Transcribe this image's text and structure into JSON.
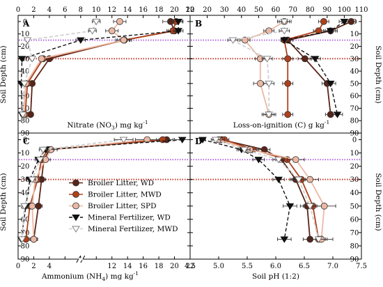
{
  "figure": {
    "title": ""
  },
  "legend": {
    "placement": "panel C, right",
    "entries": [
      {
        "key": "BL_WD",
        "label": "Broiler Litter, WD",
        "color": "#5a2418",
        "marker": "circle",
        "line": "solid"
      },
      {
        "key": "BL_MWD",
        "label": "Broiler Litter, MWD",
        "color": "#b0401a",
        "marker": "circle",
        "line": "solid"
      },
      {
        "key": "BL_SPD",
        "label": "Broiler Litter, SPD",
        "color": "#eab8a4",
        "marker": "circle",
        "line": "solid"
      },
      {
        "key": "MF_WD",
        "label": "Mineral Fertilizer, WD",
        "color": "#111111",
        "marker": "triangle-down",
        "line": "dashed"
      },
      {
        "key": "MF_MWD",
        "label": "Mineral Fertilizer, MWD",
        "color": "#d0d0d0",
        "marker": "triangle-down-open",
        "line": "dashed"
      }
    ]
  },
  "reference_lines": [
    {
      "depth": 15,
      "color": "#b06ae0",
      "style": "dotted"
    },
    {
      "depth": 30,
      "color": "#c0392b",
      "style": "dotted"
    }
  ],
  "y_axis": {
    "label": "Soil Depth (cm)",
    "range": [
      -5,
      90
    ],
    "inverted": true,
    "ticks": [
      "0",
      "10",
      "20",
      "30",
      "40",
      "50",
      "60",
      "70",
      "80",
      "90"
    ]
  },
  "chart_data": [
    {
      "type": "line",
      "panel": "A",
      "title": "",
      "xlabel": "Nitrate (NO3) mg kg-1",
      "xlabel_parts": {
        "main": "Nitrate (NO",
        "sub": "3",
        "close": ") mg kg",
        "sup": "-1"
      },
      "x_axis_position": "top",
      "xlim": [
        0,
        22
      ],
      "x_ticks": [
        "0",
        "2",
        "4",
        "6",
        "8",
        "10",
        "12",
        "14",
        "16",
        "18",
        "20",
        "22"
      ],
      "grid": false,
      "depths": [
        0,
        7.5,
        15,
        30,
        50,
        75
      ],
      "series": [
        {
          "name": "Broiler Litter, WD",
          "values": [
            19.5,
            20.0,
            13.5,
            4.0,
            1.8,
            1.6
          ],
          "error": [
            1.0,
            0.8,
            0.8,
            0.4,
            0.3,
            0.3
          ]
        },
        {
          "name": "Broiler Litter, MWD",
          "values": [
            20.2,
            19.8,
            13.6,
            3.2,
            1.2,
            0.9
          ],
          "error": [
            0.8,
            0.8,
            0.6,
            0.3,
            0.2,
            0.2
          ]
        },
        {
          "name": "Broiler Litter, SPD",
          "values": [
            13.0,
            12.0,
            13.5,
            3.0,
            1.0,
            0.7
          ],
          "error": [
            0.8,
            0.8,
            1.0,
            0.3,
            0.2,
            0.2
          ]
        },
        {
          "name": "Mineral Fertilizer, WD",
          "values": [
            20.5,
            20.5,
            8.0,
            0.5,
            0.4,
            0.5
          ],
          "error": [
            0.6,
            0.6,
            0.6,
            0.2,
            0.2,
            0.2
          ]
        },
        {
          "name": "Mineral Fertilizer, MWD",
          "values": [
            10.0,
            9.5,
            1.2,
            1.8,
            0.8,
            0.6
          ],
          "error": [
            0.5,
            0.5,
            0.2,
            0.2,
            0.2,
            0.2
          ]
        }
      ]
    },
    {
      "type": "line",
      "panel": "B",
      "title": "",
      "xlabel": "Loss-on-ignition (C) g kg-1",
      "xlabel_parts": {
        "main": "Loss-on-ignition (C) g kg",
        "sub": "",
        "close": "",
        "sup": "-1"
      },
      "x_axis_position": "top",
      "xlim": [
        10,
        110
      ],
      "x_ticks": [
        "10",
        "20",
        "30",
        "40",
        "50",
        "60",
        "70",
        "80",
        "90",
        "100",
        "110"
      ],
      "grid": false,
      "depths": [
        0,
        7.5,
        15,
        30,
        50,
        75
      ],
      "series": [
        {
          "name": "Broiler Litter, WD",
          "values": [
            104,
            92,
            67,
            77,
            90,
            92
          ],
          "error": [
            3,
            4,
            3,
            4,
            3,
            3
          ]
        },
        {
          "name": "Broiler Litter, MWD",
          "values": [
            88,
            85,
            65,
            67,
            67,
            67
          ],
          "error": [
            3,
            3,
            2,
            3,
            3,
            3
          ]
        },
        {
          "name": "Broiler Litter, SPD",
          "values": [
            65,
            56,
            42,
            51,
            51,
            56
          ],
          "error": [
            4,
            3,
            3,
            3,
            4,
            4
          ]
        },
        {
          "name": "Mineral Fertilizer, WD",
          "values": [
            100,
            92,
            65,
            83,
            92,
            96
          ],
          "error": [
            3,
            3,
            2,
            3,
            3,
            3
          ]
        },
        {
          "name": "Mineral Fertilizer, MWD",
          "values": [
            65,
            65,
            35,
            55,
            56,
            56
          ],
          "error": [
            3,
            3,
            3,
            3,
            3,
            3
          ]
        }
      ]
    },
    {
      "type": "line",
      "panel": "C",
      "title": "",
      "xlabel": "Ammonium (NH4) mg kg-1",
      "xlabel_parts": {
        "main": "Ammonium (NH",
        "sub": "4",
        "close": ") mg kg",
        "sup": "-1"
      },
      "x_axis_position": "bottom",
      "xlim": [
        0,
        22
      ],
      "x_ticks": [
        "0",
        "2",
        "4",
        "6",
        "8",
        "10",
        "12",
        "14",
        "16",
        "18",
        "20",
        "22"
      ],
      "axis_break": {
        "from": 5,
        "to": 11
      },
      "grid": false,
      "depths": [
        0,
        7.5,
        15,
        30,
        50,
        75
      ],
      "series": [
        {
          "name": "Broiler Litter, WD",
          "values": [
            19.0,
            4.0,
            3.3,
            3.0,
            2.6,
            2.0
          ],
          "error": [
            0.8,
            0.6,
            0.5,
            0.5,
            0.5,
            0.4
          ]
        },
        {
          "name": "Broiler Litter, MWD",
          "values": [
            18.5,
            3.8,
            3.0,
            2.5,
            1.5,
            1.0
          ],
          "error": [
            0.8,
            0.5,
            0.5,
            0.4,
            0.4,
            0.3
          ]
        },
        {
          "name": "Broiler Litter, SPD",
          "values": [
            16.5,
            4.2,
            3.5,
            2.2,
            1.8,
            2.0
          ],
          "error": [
            1.5,
            0.8,
            0.6,
            0.6,
            0.5,
            0.5
          ]
        },
        {
          "name": "Mineral Fertilizer, WD",
          "values": [
            21.0,
            3.5,
            2.6,
            1.5,
            1.0,
            0.4
          ],
          "error": [
            1.0,
            0.5,
            0.4,
            0.4,
            0.3,
            0.2
          ]
        },
        {
          "name": "Mineral Fertilizer, MWD",
          "values": [
            13.5,
            3.2,
            2.8,
            1.8,
            0.8,
            0.5
          ],
          "error": [
            1.2,
            0.5,
            0.4,
            0.4,
            0.3,
            0.2
          ]
        }
      ]
    },
    {
      "type": "line",
      "panel": "D",
      "title": "",
      "xlabel": "Soil pH (1:2)",
      "xlabel_parts": {
        "main": "Soil pH (1:2)",
        "sub": "",
        "close": "",
        "sup": ""
      },
      "x_axis_position": "bottom",
      "xlim": [
        4.5,
        7.5
      ],
      "x_ticks": [
        "4.5",
        "5.0",
        "5.5",
        "6.0",
        "6.5",
        "7.0",
        "7.5"
      ],
      "grid": false,
      "depths": [
        0,
        7.5,
        15,
        30,
        50,
        75
      ],
      "series": [
        {
          "name": "Broiler Litter, WD",
          "values": [
            5.05,
            5.8,
            6.1,
            6.35,
            6.55,
            6.6
          ],
          "error": [
            0.08,
            0.1,
            0.1,
            0.1,
            0.12,
            0.12
          ]
        },
        {
          "name": "Broiler Litter, MWD",
          "values": [
            5.1,
            5.6,
            6.2,
            6.45,
            6.65,
            6.75
          ],
          "error": [
            0.08,
            0.1,
            0.12,
            0.12,
            0.15,
            0.15
          ]
        },
        {
          "name": "Broiler Litter, SPD",
          "values": [
            5.0,
            5.55,
            6.35,
            6.6,
            6.85,
            6.8
          ],
          "error": [
            0.1,
            0.12,
            0.15,
            0.15,
            0.2,
            0.2
          ]
        },
        {
          "name": "Mineral Fertilizer, WD",
          "values": [
            4.72,
            5.4,
            5.7,
            6.05,
            6.25,
            6.15
          ],
          "error": [
            0.05,
            0.08,
            0.1,
            0.1,
            0.12,
            0.12
          ]
        },
        {
          "name": "Mineral Fertilizer, MWD",
          "values": [
            4.95,
            5.45,
            6.05,
            6.4,
            6.6,
            6.75
          ],
          "error": [
            0.08,
            0.1,
            0.1,
            0.12,
            0.12,
            0.12
          ]
        }
      ]
    }
  ]
}
